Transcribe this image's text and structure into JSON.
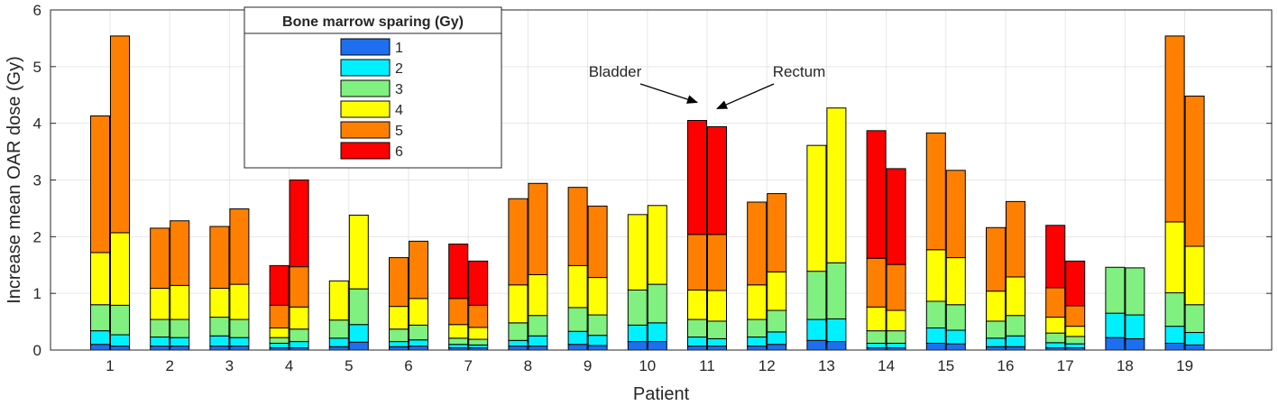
{
  "chart_data": {
    "type": "bar",
    "subtype": "stacked-grouped",
    "xlabel": "Patient",
    "ylabel": "Increase mean OAR dose (Gy)",
    "ylim": [
      0,
      6
    ],
    "yticks": [
      0,
      1,
      2,
      3,
      4,
      5,
      6
    ],
    "grid": true,
    "categories": [
      "1",
      "2",
      "3",
      "4",
      "5",
      "6",
      "7",
      "8",
      "9",
      "10",
      "11",
      "12",
      "13",
      "14",
      "15",
      "16",
      "17",
      "18",
      "19"
    ],
    "groups": [
      "Bladder",
      "Rectum"
    ],
    "legend": {
      "title": "Bone marrow sparing (Gy)",
      "position": "top-left",
      "entries": [
        "1",
        "2",
        "3",
        "4",
        "5",
        "6"
      ]
    },
    "series_colors": [
      "#1e6ff0",
      "#00f0ff",
      "#80f080",
      "#ffff00",
      "#ff8000",
      "#ff0000"
    ],
    "annotations": [
      {
        "label": "Bladder",
        "points_to": {
          "category": "11",
          "group": "Bladder"
        }
      },
      {
        "label": "Rectum",
        "points_to": {
          "category": "11",
          "group": "Rectum"
        }
      }
    ],
    "cumulative_values": {
      "Bladder": [
        [
          0.1,
          0.34,
          0.8,
          1.72,
          4.13,
          null
        ],
        [
          0.07,
          0.23,
          0.54,
          1.09,
          2.15,
          null
        ],
        [
          0.07,
          0.25,
          0.58,
          1.09,
          2.18,
          null
        ],
        [
          0.04,
          0.12,
          0.22,
          0.39,
          0.79,
          1.49
        ],
        [
          0.06,
          0.21,
          0.53,
          1.22,
          null,
          null
        ],
        [
          0.06,
          0.15,
          0.37,
          0.77,
          1.63,
          null
        ],
        [
          0.04,
          0.1,
          0.21,
          0.45,
          0.91,
          1.87
        ],
        [
          0.07,
          0.17,
          0.48,
          1.15,
          2.67,
          null
        ],
        [
          0.1,
          0.33,
          0.75,
          1.49,
          2.87,
          null
        ],
        [
          0.15,
          0.44,
          1.06,
          2.39,
          null,
          null
        ],
        [
          0.07,
          0.23,
          0.54,
          1.06,
          2.04,
          4.05
        ],
        [
          0.07,
          0.23,
          0.54,
          1.15,
          2.61,
          null
        ],
        [
          0.17,
          0.54,
          1.39,
          3.61,
          null,
          null
        ],
        [
          0.04,
          0.12,
          0.34,
          0.76,
          1.62,
          3.87
        ],
        [
          0.12,
          0.39,
          0.86,
          1.77,
          3.83,
          null
        ],
        [
          0.06,
          0.21,
          0.51,
          1.04,
          2.16,
          null
        ],
        [
          0.04,
          0.13,
          0.3,
          0.58,
          1.1,
          2.2
        ],
        [
          0.22,
          0.65,
          1.46,
          null,
          null,
          null
        ],
        [
          0.12,
          0.42,
          1.01,
          2.26,
          5.54,
          null
        ]
      ],
      "Rectum": [
        [
          0.07,
          0.27,
          0.79,
          2.07,
          5.54,
          null
        ],
        [
          0.07,
          0.22,
          0.54,
          1.14,
          2.28,
          null
        ],
        [
          0.07,
          0.22,
          0.54,
          1.16,
          2.49,
          null
        ],
        [
          0.04,
          0.15,
          0.37,
          0.76,
          1.47,
          3.0
        ],
        [
          0.14,
          0.45,
          1.08,
          2.38,
          null,
          null
        ],
        [
          0.07,
          0.18,
          0.44,
          0.91,
          1.92,
          null
        ],
        [
          0.04,
          0.09,
          0.19,
          0.4,
          0.79,
          1.57
        ],
        [
          0.07,
          0.25,
          0.61,
          1.33,
          2.94,
          null
        ],
        [
          0.08,
          0.26,
          0.62,
          1.28,
          2.54,
          null
        ],
        [
          0.15,
          0.48,
          1.16,
          2.55,
          null,
          null
        ],
        [
          0.07,
          0.2,
          0.51,
          1.05,
          2.04,
          3.94
        ],
        [
          0.1,
          0.32,
          0.7,
          1.38,
          2.76,
          null
        ],
        [
          0.15,
          0.55,
          1.54,
          4.27,
          null,
          null
        ],
        [
          0.04,
          0.12,
          0.34,
          0.7,
          1.51,
          3.2
        ],
        [
          0.11,
          0.35,
          0.8,
          1.63,
          3.17,
          null
        ],
        [
          0.06,
          0.25,
          0.61,
          1.29,
          2.62,
          null
        ],
        [
          0.04,
          0.11,
          0.24,
          0.42,
          0.78,
          1.57
        ],
        [
          0.2,
          0.62,
          1.45,
          null,
          null,
          null
        ],
        [
          0.09,
          0.31,
          0.8,
          1.83,
          4.48,
          null
        ]
      ]
    }
  }
}
